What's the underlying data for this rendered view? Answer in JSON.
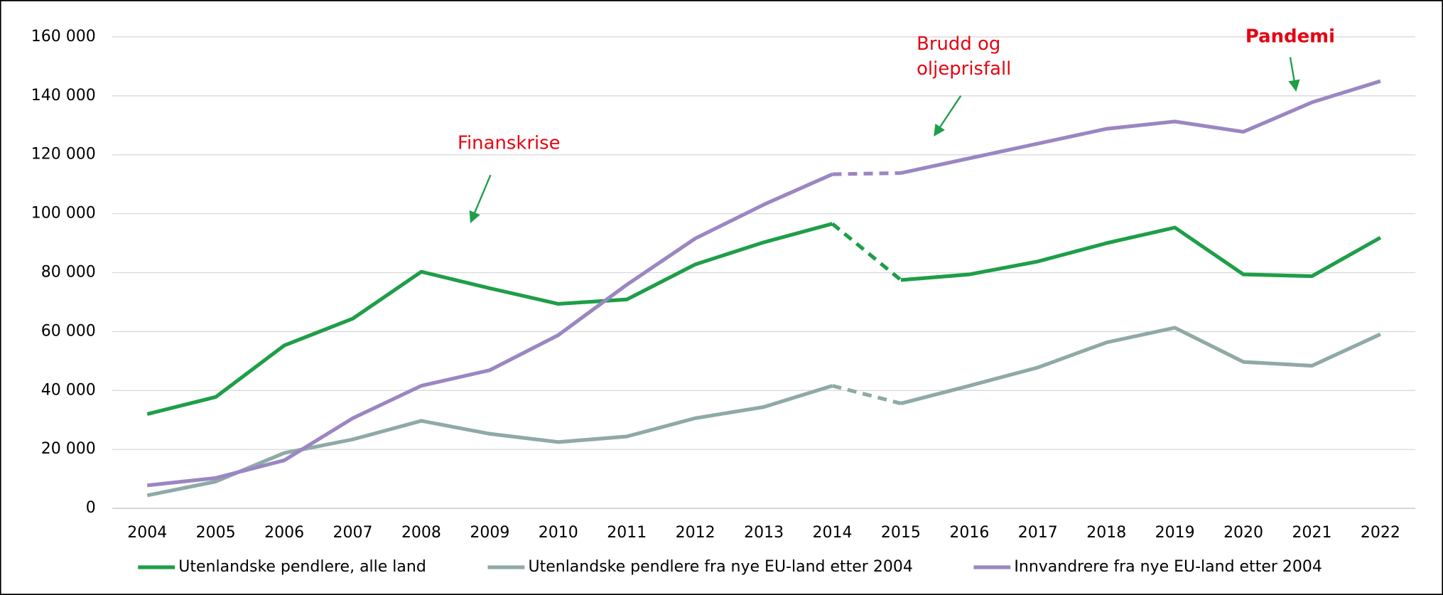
{
  "chart_data": {
    "type": "line",
    "categories": [
      "2004",
      "2005",
      "2006",
      "2007",
      "2008",
      "2009",
      "2010",
      "2011",
      "2012",
      "2013",
      "2014",
      "2015",
      "2016",
      "2017",
      "2018",
      "2019",
      "2020",
      "2021",
      "2022"
    ],
    "series": [
      {
        "name": "Utenlandske pendlere, alle land",
        "color": "#1e9e48",
        "values": [
          32000,
          37800,
          55300,
          64400,
          80300,
          74700,
          69400,
          70900,
          82800,
          90300,
          96600,
          77500,
          79400,
          83800,
          90000,
          95300,
          79400,
          78800,
          91900
        ]
      },
      {
        "name": "Utenlandske pendlere fra nye EU-land etter 2004",
        "color": "#8faaa6",
        "values": [
          4400,
          9100,
          18800,
          23400,
          29700,
          25300,
          22500,
          24400,
          30600,
          34400,
          41600,
          35600,
          41600,
          47800,
          56300,
          61300,
          49700,
          48400,
          59100
        ]
      },
      {
        "name": "Innvandrere fra nye EU-land etter 2004",
        "color": "#9b86c2",
        "values": [
          7800,
          10300,
          16300,
          30600,
          41600,
          46900,
          58800,
          75900,
          91600,
          103100,
          113400,
          113800,
          118800,
          123800,
          128800,
          131300,
          127800,
          137800,
          145000
        ]
      }
    ],
    "dashed_segment": [
      10,
      11
    ],
    "ylim": [
      0,
      160000
    ],
    "yticks": [
      0,
      {
        "value": 20000,
        "label": "20 000"
      },
      {
        "value": 40000,
        "label": "40 000"
      },
      {
        "value": 60000,
        "label": "60 000"
      },
      {
        "value": 80000,
        "label": "80 000"
      },
      {
        "value": 100000,
        "label": "100 000"
      },
      {
        "value": 120000,
        "label": "120 000"
      },
      {
        "value": 140000,
        "label": "140 000"
      },
      {
        "value": 160000,
        "label": "160 000"
      }
    ],
    "grid": true,
    "legend": "bottom",
    "annotations": [
      {
        "lines": [
          "Finanskrise"
        ]
      },
      {
        "lines": [
          "Brudd og",
          "oljeprisfall"
        ]
      },
      {
        "lines": [
          "Pandemi"
        ]
      }
    ]
  }
}
